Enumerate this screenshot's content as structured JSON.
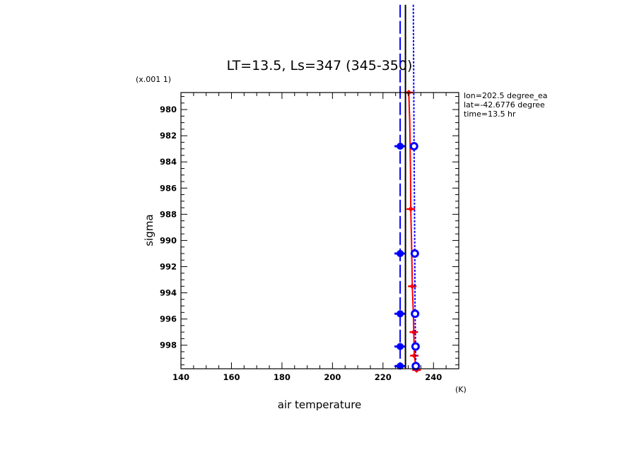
{
  "chart_data": {
    "type": "line",
    "title": "LT=13.5, Ls=347 (345-350)",
    "xlabel": "air temperature",
    "x_units": "(K)",
    "ylabel": "sigma",
    "y_scale_label": "(x.001 1)",
    "xlim": [
      140,
      250
    ],
    "ylim": [
      999.8,
      978.7
    ],
    "x_ticks": [
      140,
      160,
      180,
      200,
      220,
      240
    ],
    "y_ticks": [
      980,
      982,
      984,
      986,
      988,
      990,
      992,
      994,
      996,
      998
    ],
    "annotations": [
      "lon=202.5 degree_ea",
      "lat=-42.6776 degree",
      "time=13.5 hr"
    ],
    "series": [
      {
        "color": "#ff0000",
        "style": "solid",
        "marker": "diamond",
        "points": [
          [
            230.2,
            978.7
          ],
          [
            230.6,
            981.0
          ],
          [
            230.9,
            985.0
          ],
          [
            231.0,
            987.6
          ],
          [
            231.3,
            990.0
          ],
          [
            231.6,
            993.5
          ],
          [
            232.0,
            995.5
          ],
          [
            232.2,
            997.0
          ],
          [
            232.4,
            998.8
          ],
          [
            233.3,
            999.9
          ]
        ],
        "marker_sigma": [
          978.7,
          987.6,
          993.5,
          997.0,
          998.8,
          999.9
        ]
      },
      {
        "color": "#0000ff",
        "style": "long-dash",
        "marker": "filled-circle",
        "points": [
          [
            226.8,
            972.0
          ],
          [
            226.8,
            999.8
          ]
        ],
        "marker_sigma": [
          982.8,
          991.0,
          995.6,
          998.1,
          999.6
        ]
      },
      {
        "color": "#000000",
        "style": "solid",
        "marker": "none",
        "points": [
          [
            228.9,
            972.0
          ],
          [
            228.9,
            999.8
          ]
        ],
        "marker_sigma": []
      },
      {
        "color": "#0000ff",
        "style": "dotted",
        "marker": "open-circle",
        "points": [
          [
            232.0,
            972.0
          ],
          [
            232.3,
            983.0
          ],
          [
            232.6,
            991.0
          ],
          [
            232.7,
            995.6
          ],
          [
            232.9,
            998.1
          ],
          [
            233.0,
            999.6
          ]
        ],
        "marker_sigma": [
          982.8,
          991.0,
          995.6,
          998.1,
          999.6
        ]
      }
    ]
  }
}
